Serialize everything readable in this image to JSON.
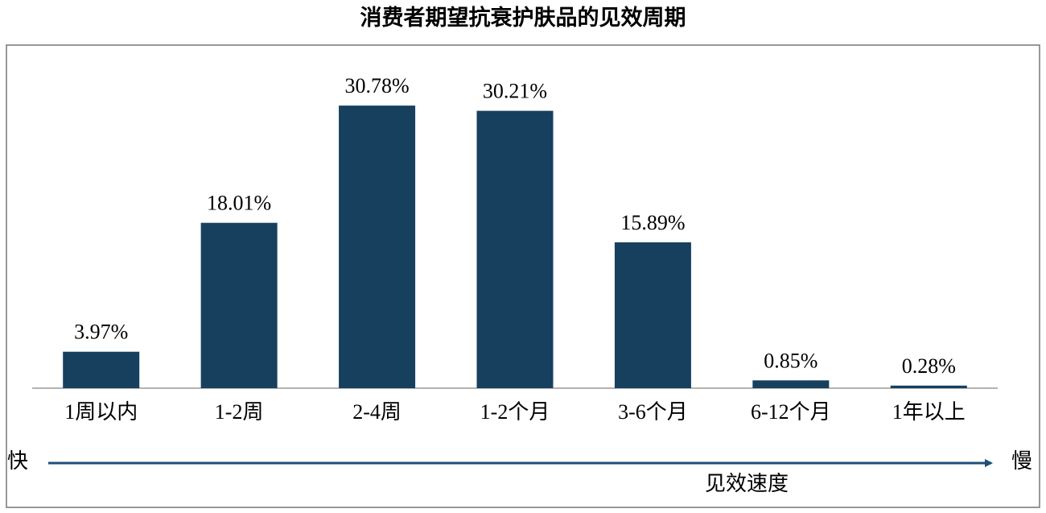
{
  "chart_data": {
    "type": "bar",
    "title": "消费者期望抗衰护肤品的见效周期",
    "categories": [
      "1周以内",
      "1-2周",
      "2-4周",
      "1-2个月",
      "3-6个月",
      "6-12个月",
      "1年以上"
    ],
    "values": [
      3.97,
      18.01,
      30.78,
      30.21,
      15.89,
      0.85,
      0.28
    ],
    "value_labels": [
      "3.97%",
      "18.01%",
      "30.78%",
      "30.21%",
      "15.89%",
      "0.85%",
      "0.28%"
    ],
    "color": "#17405f",
    "annotations": {
      "fast": "快",
      "slow": "慢",
      "axis_label": "见效速度"
    }
  }
}
